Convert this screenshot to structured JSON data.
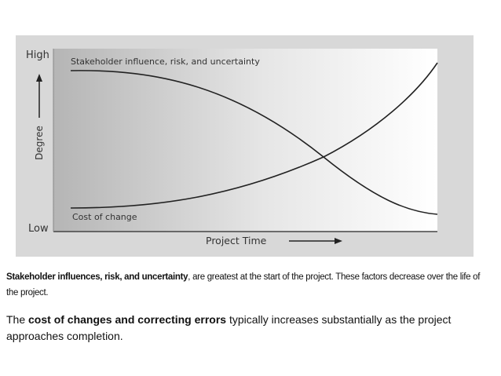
{
  "diagram": {
    "y_high": "High",
    "y_low": "Low",
    "y_axis_label": "Degree",
    "x_axis_label": "Project Time",
    "curves": [
      {
        "label": "Stakeholder influence, risk, and uncertainty"
      },
      {
        "label": "Cost of change"
      }
    ]
  },
  "notes": [
    {
      "bold": "Stakeholder influences, risk, and uncertainty",
      "text": ", are greatest at the start of the project. These factors decrease over the life of the project."
    },
    {
      "prefix": "The ",
      "bold": "cost of changes and correcting errors",
      "text": " typically increases substantially as the project approaches completion."
    }
  ]
}
